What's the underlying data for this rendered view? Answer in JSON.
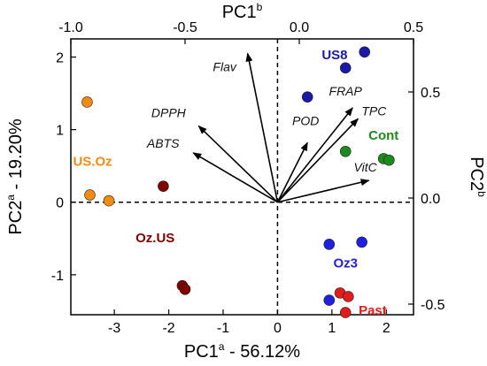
{
  "chart_data": {
    "type": "scatter",
    "subtype": "pca-biplot",
    "axes": {
      "bottom": {
        "label": "PC1",
        "sup": "a",
        "suffix": " - 56.12%",
        "range": [
          -3.8,
          2.5
        ],
        "ticks": [
          -3,
          -2,
          -1,
          0,
          1,
          2
        ],
        "tick_labels": [
          "-3",
          "-2",
          "-1",
          "0",
          "1",
          "2"
        ]
      },
      "left": {
        "label": "PC2",
        "sup": "a",
        "suffix": " - 19.20%",
        "range": [
          -1.55,
          2.25
        ],
        "ticks": [
          -1,
          0,
          1,
          2
        ],
        "tick_labels": [
          "-1",
          "0",
          "1",
          "2"
        ]
      },
      "top": {
        "label": "PC1",
        "sup": "b",
        "suffix": "",
        "range": [
          -1.0,
          0.5
        ],
        "ticks": [
          -1.0,
          -0.5,
          0.0,
          0.5
        ],
        "tick_labels": [
          "-1.0",
          "-0.5",
          "0.0",
          "0.5"
        ]
      },
      "right": {
        "label": "PC2",
        "sup": "b",
        "suffix": "",
        "range": [
          -0.55,
          0.75
        ],
        "ticks": [
          -0.5,
          0.0,
          0.5
        ],
        "tick_labels": [
          "-0.5",
          "0.0",
          "0.5"
        ]
      }
    },
    "zero_lines": "dashed",
    "vectors": [
      {
        "name": "Flav",
        "x": -0.55,
        "y": 2.05
      },
      {
        "name": "DPPH",
        "x": -1.45,
        "y": 1.05
      },
      {
        "name": "ABTS",
        "x": -1.55,
        "y": 0.68
      },
      {
        "name": "POD",
        "x": 0.55,
        "y": 0.82
      },
      {
        "name": "FRAP",
        "x": 1.38,
        "y": 1.3
      },
      {
        "name": "TPC",
        "x": 1.48,
        "y": 1.15
      },
      {
        "name": "VitC",
        "x": 1.68,
        "y": 0.3
      }
    ],
    "series": [
      {
        "name": "US8",
        "color": "#1a1aa6",
        "points": [
          [
            1.6,
            2.07
          ],
          [
            1.25,
            1.85
          ],
          [
            0.55,
            1.45
          ]
        ]
      },
      {
        "name": "Cont",
        "color": "#1e8a1e",
        "points": [
          [
            1.25,
            0.7
          ],
          [
            1.95,
            0.6
          ],
          [
            2.05,
            0.58
          ]
        ]
      },
      {
        "name": "US.Oz",
        "color": "#f08c14",
        "points": [
          [
            -3.5,
            1.38
          ],
          [
            -3.45,
            0.1
          ],
          [
            -3.1,
            0.02
          ]
        ]
      },
      {
        "name": "Oz.US",
        "color": "#800000",
        "points": [
          [
            -2.1,
            0.22
          ],
          [
            -1.75,
            -1.15
          ],
          [
            -1.7,
            -1.2
          ]
        ]
      },
      {
        "name": "Oz3",
        "color": "#1f1fe0",
        "points": [
          [
            0.95,
            -0.58
          ],
          [
            1.55,
            -0.55
          ],
          [
            0.95,
            -1.35
          ]
        ]
      },
      {
        "name": "Past",
        "color": "#e01c1c",
        "points": [
          [
            1.15,
            -1.25
          ],
          [
            1.3,
            -1.3
          ],
          [
            1.25,
            -1.52
          ]
        ]
      }
    ]
  }
}
